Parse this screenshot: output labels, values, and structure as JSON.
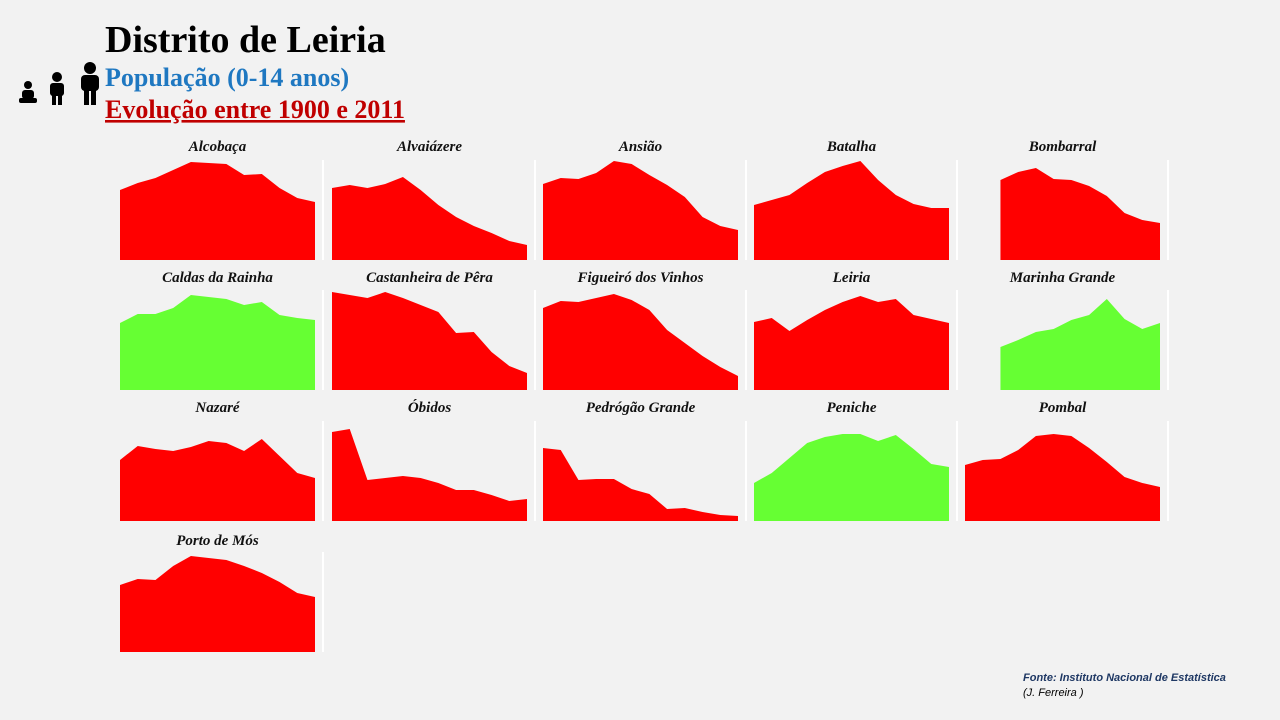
{
  "header": {
    "title": "Distrito de Leiria",
    "subtitle": "População (0-14 anos)",
    "period": "Evolução entre 1900 e 2011"
  },
  "footer": {
    "source": "Fonte: Instituto Nacional de Estatística",
    "author": "(J. Ferreira )"
  },
  "chart_data": [
    {
      "type": "area",
      "title": "Alcobaça",
      "color": "#ff0000",
      "values": [
        70,
        77,
        82,
        90,
        98,
        97,
        96,
        85,
        86,
        72,
        62,
        58
      ]
    },
    {
      "type": "area",
      "title": "Alvaiázere",
      "color": "#ff0000",
      "values": [
        72,
        75,
        72,
        76,
        83,
        70,
        55,
        43,
        34,
        27,
        19,
        15
      ]
    },
    {
      "type": "area",
      "title": "Ansião",
      "color": "#ff0000",
      "values": [
        76,
        82,
        81,
        87,
        99,
        96,
        85,
        75,
        63,
        43,
        34,
        30
      ]
    },
    {
      "type": "area",
      "title": "Batalha",
      "color": "#ff0000",
      "values": [
        55,
        60,
        65,
        77,
        88,
        94,
        99,
        80,
        65,
        56,
        52,
        52
      ]
    },
    {
      "type": "area",
      "title": "Bombarral",
      "color": "#ff0000",
      "values": [
        null,
        null,
        80,
        88,
        92,
        81,
        80,
        74,
        64,
        47,
        40,
        37
      ]
    },
    {
      "type": "area",
      "title": "Caldas da Rainha",
      "color": "#66ff33",
      "values": [
        67,
        76,
        76,
        82,
        95,
        93,
        91,
        85,
        88,
        75,
        72,
        70
      ]
    },
    {
      "type": "area",
      "title": "Castanheira de Pêra",
      "color": "#ff0000",
      "values": [
        98,
        95,
        92,
        98,
        92,
        85,
        78,
        57,
        58,
        38,
        24,
        17
      ]
    },
    {
      "type": "area",
      "title": "Figueiró dos Vinhos",
      "color": "#ff0000",
      "values": [
        82,
        89,
        88,
        92,
        96,
        90,
        80,
        60,
        47,
        34,
        23,
        14
      ]
    },
    {
      "type": "area",
      "title": "Leiria",
      "color": "#ff0000",
      "values": [
        68,
        72,
        59,
        70,
        80,
        88,
        94,
        88,
        91,
        75,
        71,
        67
      ]
    },
    {
      "type": "area",
      "title": "Marinha Grande",
      "color": "#66ff33",
      "values": [
        null,
        null,
        43,
        50,
        58,
        61,
        70,
        75,
        91,
        71,
        61,
        67
      ]
    },
    {
      "type": "area",
      "title": "Nazaré",
      "color": "#ff0000",
      "values": [
        61,
        75,
        72,
        70,
        74,
        80,
        78,
        70,
        82,
        65,
        48,
        43
      ]
    },
    {
      "type": "area",
      "title": "Óbidos",
      "color": "#ff0000",
      "values": [
        89,
        92,
        41,
        43,
        45,
        43,
        38,
        31,
        31,
        26,
        20,
        22
      ]
    },
    {
      "type": "area",
      "title": "Pedrógão Grande",
      "color": "#ff0000",
      "values": [
        73,
        71,
        41,
        42,
        42,
        32,
        27,
        12,
        13,
        9,
        6,
        5
      ]
    },
    {
      "type": "area",
      "title": "Peniche",
      "color": "#66ff33",
      "values": [
        38,
        48,
        63,
        78,
        84,
        87,
        87,
        80,
        86,
        72,
        57,
        54
      ]
    },
    {
      "type": "area",
      "title": "Pombal",
      "color": "#ff0000",
      "values": [
        56,
        61,
        62,
        71,
        85,
        87,
        85,
        73,
        59,
        44,
        38,
        34
      ]
    },
    {
      "type": "area",
      "title": "Porto de Mós",
      "color": "#ff0000",
      "values": [
        67,
        73,
        72,
        86,
        96,
        94,
        92,
        86,
        79,
        70,
        59,
        55
      ]
    }
  ]
}
